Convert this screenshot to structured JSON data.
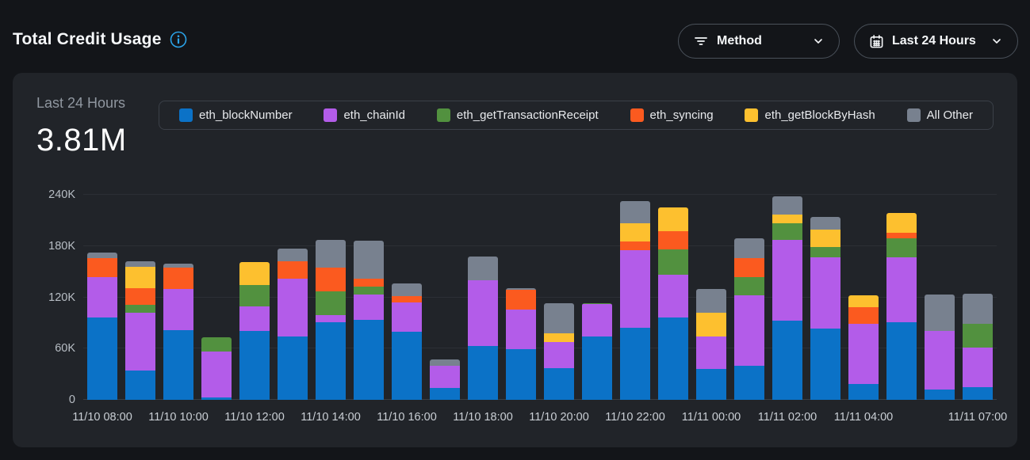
{
  "header": {
    "title": "Total Credit Usage",
    "method_button": {
      "label": "Method"
    },
    "range_button": {
      "label": "Last 24 Hours"
    }
  },
  "summary": {
    "label": "Last 24 Hours",
    "value": "3.81M"
  },
  "colors": {
    "page_bg": "#131519",
    "card_bg": "#212429",
    "accent_info": "#2ba3e8",
    "grid": "#2c2f35",
    "axis_text": "#b8bec5"
  },
  "chart_data": {
    "type": "bar",
    "stacked": true,
    "title": "Total Credit Usage",
    "xlabel": "",
    "ylabel": "",
    "values_unit": "K credits",
    "ylim": [
      0,
      240
    ],
    "grid": "horizontal",
    "legend_position": "top",
    "yticks": [
      {
        "value": 0,
        "label": "0"
      },
      {
        "value": 60,
        "label": "60K"
      },
      {
        "value": 120,
        "label": "120K"
      },
      {
        "value": 180,
        "label": "180K"
      },
      {
        "value": 240,
        "label": "240K"
      }
    ],
    "categories": [
      "11/10 08:00",
      "11/10 09:00",
      "11/10 10:00",
      "11/10 11:00",
      "11/10 12:00",
      "11/10 13:00",
      "11/10 14:00",
      "11/10 15:00",
      "11/10 16:00",
      "11/10 17:00",
      "11/10 18:00",
      "11/10 19:00",
      "11/10 20:00",
      "11/10 21:00",
      "11/10 22:00",
      "11/10 23:00",
      "11/11 00:00",
      "11/11 01:00",
      "11/11 02:00",
      "11/11 03:00",
      "11/11 04:00",
      "11/11 05:00",
      "11/11 06:00",
      "11/11 07:00"
    ],
    "xticks": [
      {
        "index": 0,
        "label": "11/10 08:00"
      },
      {
        "index": 2,
        "label": "11/10 10:00"
      },
      {
        "index": 4,
        "label": "11/10 12:00"
      },
      {
        "index": 6,
        "label": "11/10 14:00"
      },
      {
        "index": 8,
        "label": "11/10 16:00"
      },
      {
        "index": 10,
        "label": "11/10 18:00"
      },
      {
        "index": 12,
        "label": "11/10 20:00"
      },
      {
        "index": 14,
        "label": "11/10 22:00"
      },
      {
        "index": 16,
        "label": "11/11 00:00"
      },
      {
        "index": 18,
        "label": "11/11 02:00"
      },
      {
        "index": 20,
        "label": "11/11 04:00"
      },
      {
        "index": 23,
        "label": "11/11 07:00"
      }
    ],
    "series": [
      {
        "name": "eth_blockNumber",
        "color": "#0b72c7",
        "values": [
          96,
          34,
          82,
          3,
          81,
          74,
          91,
          94,
          80,
          14,
          63,
          59,
          37,
          74,
          84,
          96,
          36,
          40,
          93,
          83,
          19,
          91,
          12,
          15
        ]
      },
      {
        "name": "eth_chainId",
        "color": "#b35ce9",
        "values": [
          48,
          68,
          48,
          54,
          28,
          68,
          8,
          29,
          34,
          26,
          77,
          47,
          31,
          38,
          91,
          50,
          38,
          82,
          94,
          84,
          70,
          76,
          69,
          46
        ]
      },
      {
        "name": "eth_getTransactionReceipt",
        "color": "#52913f",
        "values": [
          0,
          9,
          0,
          16,
          25,
          0,
          28,
          10,
          0,
          0,
          0,
          0,
          0,
          1,
          0,
          30,
          0,
          22,
          20,
          12,
          0,
          22,
          0,
          28
        ]
      },
      {
        "name": "eth_syncing",
        "color": "#fb5a1f",
        "values": [
          22,
          20,
          25,
          0,
          0,
          20,
          28,
          9,
          7,
          0,
          0,
          23,
          0,
          0,
          10,
          21,
          0,
          22,
          0,
          0,
          19,
          7,
          0,
          0
        ]
      },
      {
        "name": "eth_getBlockByHash",
        "color": "#fdc02f",
        "values": [
          0,
          25,
          0,
          0,
          27,
          0,
          0,
          0,
          0,
          0,
          0,
          0,
          10,
          0,
          22,
          28,
          28,
          0,
          10,
          20,
          14,
          23,
          0,
          0
        ]
      },
      {
        "name": "All Other",
        "color": "#78818f",
        "values": [
          6,
          6,
          4,
          0,
          0,
          15,
          32,
          44,
          15,
          7,
          28,
          2,
          35,
          0,
          26,
          0,
          28,
          23,
          21,
          15,
          0,
          0,
          42,
          35
        ]
      }
    ]
  }
}
